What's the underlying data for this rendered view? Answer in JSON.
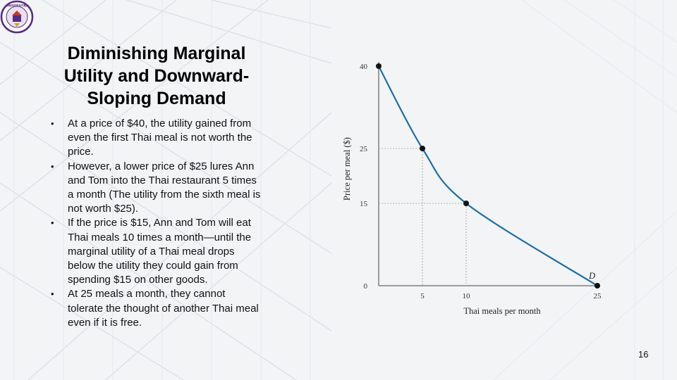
{
  "slide": {
    "title": "Diminishing Marginal Utility and Downward-Sloping Demand",
    "bullets": [
      "At a price of $40, the utility gained from even the first Thai meal is not worth the price.",
      "However, a lower price of $25 lures Ann and Tom into the Thai restaurant 5 times a month (The utility from the sixth meal is not worth $25).",
      "If the price is $15, Ann and Tom will eat Thai meals 10 times a month—until the marginal utility of a Thai meal drops below the utility they could gain from spending $15 on other goods.",
      "At 25 meals a month, they cannot tolerate the thought of another Thai meal even if it is free."
    ],
    "page_number": "16"
  },
  "logo": {
    "text": "UNIVERSITAS"
  },
  "colors": {
    "curve": "#1f6fa8",
    "point": "#111111",
    "guide": "#999999"
  },
  "chart_data": {
    "type": "line",
    "title": "",
    "xlabel": "Thai meals per month",
    "ylabel": "Price per meal ($)",
    "xlim": [
      0,
      25
    ],
    "ylim": [
      0,
      40
    ],
    "series": [
      {
        "name": "D",
        "x": [
          0,
          5,
          10,
          25
        ],
        "y": [
          40,
          25,
          15,
          0
        ]
      }
    ],
    "x_ticks": [
      5,
      10,
      25
    ],
    "y_ticks": [
      0,
      15,
      25,
      40
    ],
    "curve_label": "D"
  }
}
